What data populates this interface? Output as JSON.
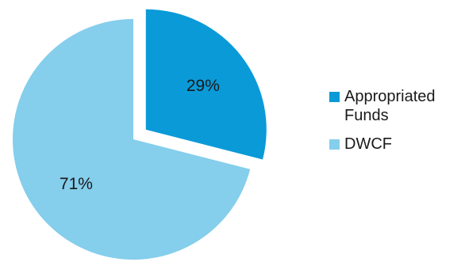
{
  "chart_data": {
    "type": "pie",
    "title": "",
    "legend_position": "right",
    "slices": [
      {
        "label": "Appropriated Funds",
        "value": 29,
        "display": "29%",
        "color": "#0a9ad8",
        "exploded": true
      },
      {
        "label": "DWCF",
        "value": 71,
        "display": "71%",
        "color": "#85ceec",
        "exploded": false
      }
    ]
  }
}
